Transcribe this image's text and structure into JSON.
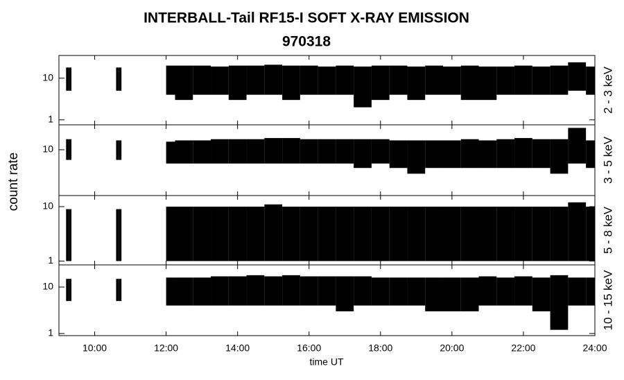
{
  "chart_data": {
    "type": "range",
    "title": "INTERBALL-Tail RF15-I SOFT X-RAY EMISSION",
    "subtitle": "970318",
    "x_label": "time UT",
    "y_label": "count rate",
    "log_y": true,
    "color": "#000000",
    "xlim": [
      9,
      24
    ],
    "xticks": [
      {
        "value": 10,
        "label": "10:00"
      },
      {
        "value": 12,
        "label": "12:00"
      },
      {
        "value": 14,
        "label": "14:00"
      },
      {
        "value": 16,
        "label": "16:00"
      },
      {
        "value": 18,
        "label": "18:00"
      },
      {
        "value": 20,
        "label": "20:00"
      },
      {
        "value": 22,
        "label": "22:00"
      },
      {
        "value": 24,
        "label": "24:00"
      }
    ],
    "x": [
      9.2,
      9.35,
      10.0,
      10.6,
      10.75,
      11.4,
      12.0,
      12.5,
      13.0,
      13.5,
      14.0,
      14.5,
      15.0,
      15.5,
      16.0,
      16.5,
      17.0,
      17.5,
      18.0,
      18.5,
      19.0,
      19.5,
      20.0,
      20.5,
      21.0,
      21.5,
      22.0,
      22.5,
      23.0,
      23.5,
      24.0
    ],
    "panels": [
      {
        "name": "2 - 3 keV",
        "ylim": [
          0.76,
          35
        ],
        "yticks": [
          1,
          10
        ],
        "high": [
          18,
          18,
          null,
          18,
          18,
          null,
          20,
          20,
          20,
          19,
          20,
          20,
          21,
          20,
          20,
          19,
          20,
          19,
          20,
          20,
          19,
          20,
          19,
          20,
          19,
          19,
          20,
          19,
          20,
          24,
          19
        ],
        "low": [
          5,
          5,
          null,
          5,
          5,
          null,
          4,
          3,
          4,
          4,
          3,
          4,
          4,
          3,
          4,
          4,
          4,
          2,
          3,
          4,
          3,
          4,
          4,
          3,
          3,
          4,
          4,
          4,
          4,
          5,
          4
        ]
      },
      {
        "name": "3 - 5 keV",
        "ylim": [
          1,
          35
        ],
        "yticks": [
          10
        ],
        "high": [
          17,
          17,
          null,
          16,
          16,
          null,
          15,
          16,
          16,
          17,
          17,
          17,
          18,
          18,
          17,
          17,
          17,
          17,
          17,
          16,
          16,
          16,
          16,
          17,
          16,
          17,
          18,
          17,
          17,
          30,
          16
        ],
        "low": [
          6,
          6,
          null,
          6,
          6,
          null,
          5,
          5,
          5,
          5,
          5,
          5,
          5,
          5,
          5,
          5,
          5,
          4,
          5,
          4,
          3,
          4,
          4,
          4,
          4,
          4,
          4,
          4,
          3,
          5,
          4
        ]
      },
      {
        "name": "5 - 8 keV",
        "ylim": [
          0.85,
          16
        ],
        "yticks": [
          1,
          10
        ],
        "high": [
          9,
          9,
          null,
          9,
          9,
          null,
          10,
          10,
          10,
          10,
          10,
          10,
          11,
          10,
          10,
          10,
          10,
          10,
          10,
          10,
          10,
          10,
          10,
          10,
          10,
          10,
          10,
          10,
          10,
          12,
          10
        ],
        "low": [
          1,
          1,
          null,
          1,
          1,
          null,
          1,
          1,
          1,
          1,
          1,
          1,
          1,
          1,
          1,
          1,
          1,
          1,
          1,
          1,
          1,
          1,
          1,
          1,
          1,
          1,
          1,
          1,
          1,
          1,
          1
        ]
      },
      {
        "name": "10 - 15 keV",
        "ylim": [
          0.9,
          30
        ],
        "yticks": [
          1,
          10
        ],
        "high": [
          15,
          15,
          null,
          15,
          15,
          null,
          16,
          16,
          16,
          17,
          17,
          18,
          17,
          18,
          17,
          17,
          17,
          17,
          16,
          16,
          16,
          16,
          16,
          16,
          17,
          16,
          17,
          16,
          18,
          16,
          16
        ],
        "low": [
          5,
          5,
          null,
          5,
          5,
          null,
          4,
          4,
          4,
          4,
          4,
          4,
          4,
          4,
          4,
          4,
          3,
          4,
          4,
          4,
          4,
          3,
          3,
          3,
          4,
          4,
          4,
          3,
          1.2,
          4,
          4
        ]
      }
    ]
  }
}
